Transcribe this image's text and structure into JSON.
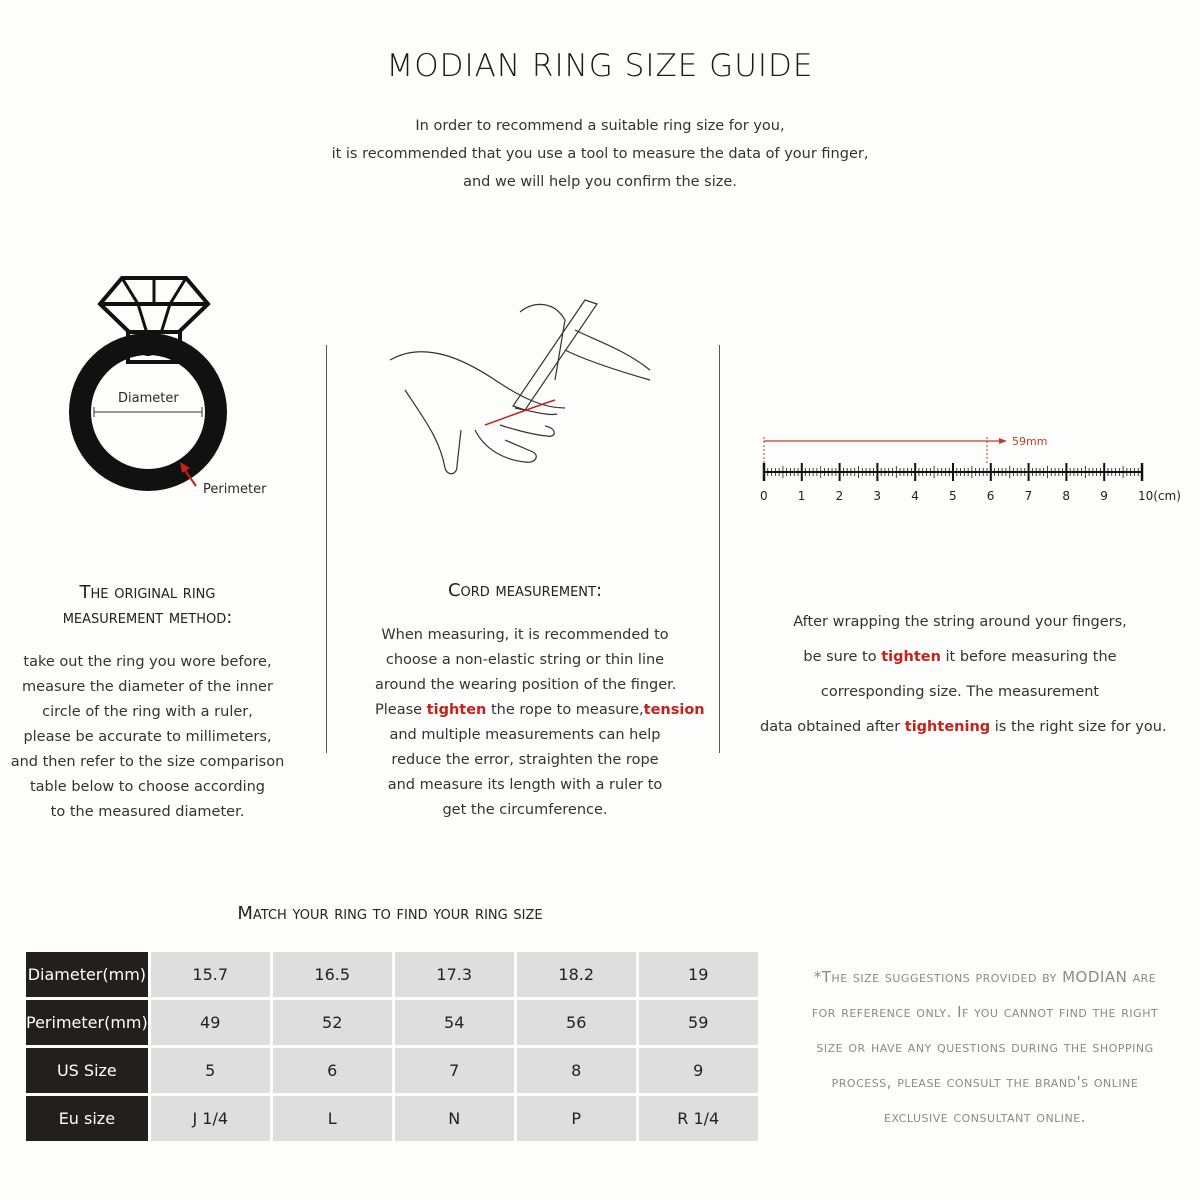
{
  "title": "MODIAN RING SIZE GUIDE",
  "intro": [
    "In order to recommend a suitable ring size for you,",
    "it is recommended that you use a tool to measure the data of your finger,",
    "and we will help you confirm the size."
  ],
  "ring_icon": {
    "diameter_label": "Diameter",
    "perimeter_label": "Perimeter"
  },
  "ruler": {
    "measurement": "59mm",
    "value_cm": 5.9,
    "ticks": [
      "0",
      "1",
      "2",
      "3",
      "4",
      "5",
      "6",
      "7",
      "8",
      "9",
      "10(cm)"
    ],
    "accent": "#c0392b"
  },
  "col1": {
    "heading": [
      "The original ring",
      "measurement method:"
    ],
    "lines": [
      [
        {
          "t": "take out the ring you wore before,"
        }
      ],
      [
        {
          "t": "measure the diameter of the inner"
        }
      ],
      [
        {
          "t": "circle of the ring with a ruler,"
        }
      ],
      [
        {
          "t": "please be accurate to millimeters,"
        }
      ],
      [
        {
          "t": "and then refer to the size comparison"
        }
      ],
      [
        {
          "t": "table below to choose according"
        }
      ],
      [
        {
          "t": "to the measured diameter."
        }
      ]
    ]
  },
  "col2": {
    "heading": [
      "Cord measurement:"
    ],
    "lines": [
      [
        {
          "t": "When measuring, it is recommended to"
        }
      ],
      [
        {
          "t": "choose a non-elastic string or thin line"
        }
      ],
      [
        {
          "t": "around the wearing position of the finger."
        }
      ],
      [
        {
          "t": "Please "
        },
        {
          "t": "tighten",
          "red": true
        },
        {
          "t": " the rope to measure,"
        },
        {
          "t": "tension",
          "red": true
        }
      ],
      [
        {
          "t": "and multiple measurements can help"
        }
      ],
      [
        {
          "t": "reduce the error, straighten the rope"
        }
      ],
      [
        {
          "t": "and measure its length with a ruler to"
        }
      ],
      [
        {
          "t": "get the circumference."
        }
      ]
    ]
  },
  "col3": {
    "lines": [
      [
        {
          "t": "After wrapping the string around your fingers,"
        }
      ],
      [
        {
          "t": "be sure to "
        },
        {
          "t": "tighten",
          "red": true
        },
        {
          "t": " it before measuring the"
        }
      ],
      [
        {
          "t": "corresponding size. The measurement"
        }
      ],
      [
        {
          "t": "data obtained after "
        },
        {
          "t": "tightening",
          "red": true
        },
        {
          "t": " is the right size for you."
        }
      ]
    ]
  },
  "table": {
    "heading": "Match your ring to find your ring size",
    "rows": [
      {
        "label": "Diameter(mm)",
        "values": [
          "15.7",
          "16.5",
          "17.3",
          "18.2",
          "19"
        ]
      },
      {
        "label": "Perimeter(mm)",
        "values": [
          "49",
          "52",
          "54",
          "56",
          "59"
        ]
      },
      {
        "label": "US Size",
        "values": [
          "5",
          "6",
          "7",
          "8",
          "9"
        ]
      },
      {
        "label": "Eu size",
        "values": [
          "J 1/4",
          "L",
          "N",
          "P",
          "R 1/4"
        ]
      }
    ]
  },
  "note": [
    "*The size suggestions provided by MODIAN are",
    "for reference only. If you cannot find the right",
    "size or have any questions during the shopping",
    "process, please consult the brand's online",
    "exclusive consultant online."
  ]
}
